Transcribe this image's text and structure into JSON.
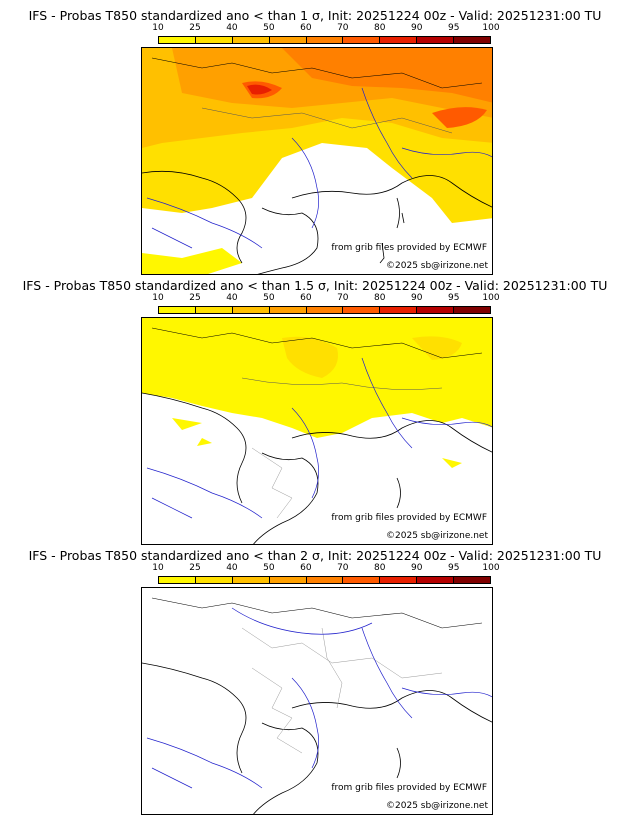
{
  "colorbar": {
    "ticks": [
      "10",
      "25",
      "40",
      "50",
      "60",
      "70",
      "80",
      "90",
      "95",
      "100"
    ],
    "colors": [
      "#fff700",
      "#ffe000",
      "#ffc000",
      "#ffa000",
      "#ff8000",
      "#ff5a00",
      "#e82000",
      "#b50000",
      "#800000"
    ]
  },
  "panels": [
    {
      "title": "IFS - Probas T850  standardized ano < than 1 σ, Init: 20251224 00z - Valid: 20251231:00 TU",
      "credit_source": "from grib files provided by ECMWF",
      "credit_copyright": "©2025 sb@irizone.net"
    },
    {
      "title": "IFS - Probas T850  standardized ano < than 1.5 σ, Init: 20251224 00z - Valid: 20251231:00 TU",
      "credit_source": "from grib files provided by ECMWF",
      "credit_copyright": "©2025 sb@irizone.net"
    },
    {
      "title": "IFS - Probas T850  standardized ano < than 2 σ, Init: 20251224 00z - Valid: 20251231:00 TU",
      "credit_source": "from grib files provided by ECMWF",
      "credit_copyright": "©2025 sb@irizone.net"
    }
  ]
}
